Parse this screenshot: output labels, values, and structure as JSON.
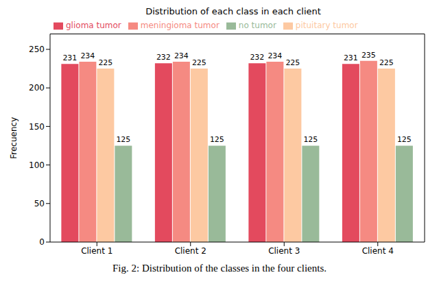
{
  "chart_data": {
    "type": "bar",
    "title": "Distribution of each class in each client",
    "y_label": "Frecuency",
    "caption": "Fig. 2: Distribution of the classes in the four clients.",
    "categories": [
      "Client 1",
      "Client 2",
      "Client 3",
      "Client 4"
    ],
    "series": [
      {
        "name": "glioma tumor",
        "color": "#e34a5e",
        "values": [
          231,
          232,
          232,
          231
        ]
      },
      {
        "name": "meningioma tumor",
        "color": "#f58a82",
        "values": [
          234,
          234,
          234,
          235
        ]
      },
      {
        "name": "pituitary tumor",
        "color": "#fdc9a2",
        "values": [
          225,
          225,
          225,
          225
        ]
      },
      {
        "name": "no tumor",
        "color": "#99ba99",
        "values": [
          125,
          125,
          125,
          125
        ]
      }
    ],
    "ylim": [
      0,
      270
    ],
    "yticks": [
      0,
      50,
      100,
      150,
      200,
      250
    ],
    "legend": "upper left",
    "data_labels": true
  }
}
